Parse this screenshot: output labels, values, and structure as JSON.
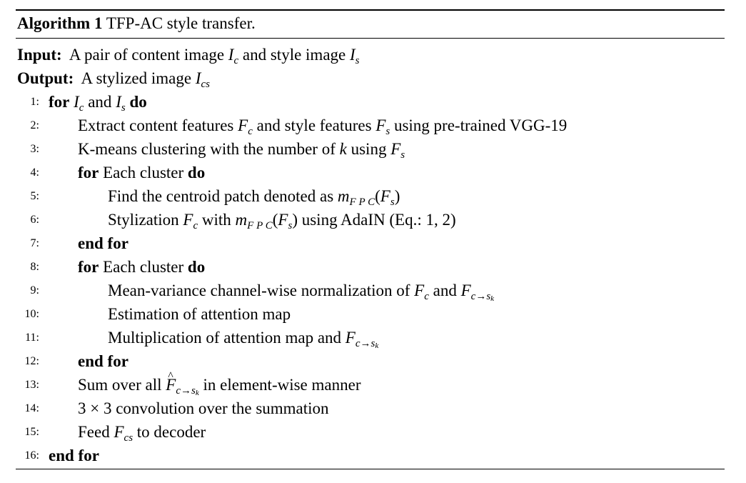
{
  "algorithm": {
    "label": "Algorithm 1",
    "title": "TFP-AC style transfer.",
    "input_label": "Input:",
    "input_text": "A pair of content image",
    "input_and": "and style image",
    "output_label": "Output:",
    "output_text": "A stylized image",
    "keywords": {
      "for": "for",
      "do": "do",
      "end_for": "end for"
    },
    "lines": [
      {
        "num": "1:",
        "text_before": "",
        "text_and": "and"
      },
      {
        "num": "2:",
        "text": "Extract content features",
        "text2": "and style features",
        "text3": "using pre-trained VGG-19"
      },
      {
        "num": "3:",
        "text": "K-means clustering with the number of",
        "text2": "using"
      },
      {
        "num": "4:",
        "text": "Each cluster"
      },
      {
        "num": "5:",
        "text": "Find the centroid patch denoted as"
      },
      {
        "num": "6:",
        "text": "Stylization",
        "text2": "with",
        "text3": "using AdaIN (Eq.: 1, 2)"
      },
      {
        "num": "7:"
      },
      {
        "num": "8:",
        "text": "Each cluster"
      },
      {
        "num": "9:",
        "text": "Mean-variance channel-wise normalization of",
        "text2": "and"
      },
      {
        "num": "10:",
        "text": "Estimation of attention map"
      },
      {
        "num": "11:",
        "text": "Multiplication of attention map and"
      },
      {
        "num": "12:"
      },
      {
        "num": "13:",
        "text": "Sum over all",
        "text2": "in element-wise manner"
      },
      {
        "num": "14:",
        "text": "3 × 3 convolution over the summation"
      },
      {
        "num": "15:",
        "text": "Feed",
        "text2": "to decoder"
      },
      {
        "num": "16:"
      }
    ]
  }
}
